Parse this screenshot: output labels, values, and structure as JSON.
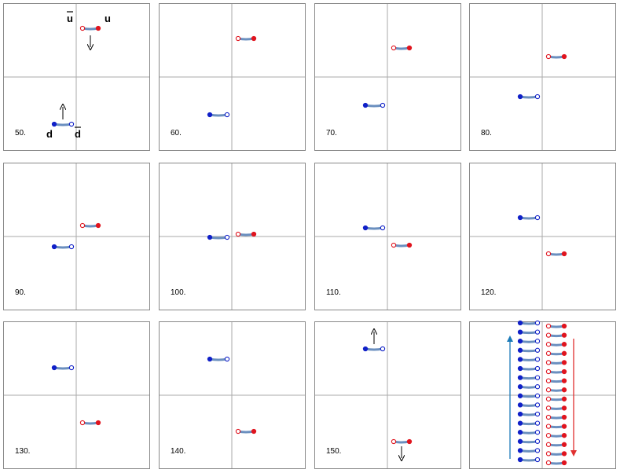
{
  "colors": {
    "blue": "#1020c8",
    "red": "#e0141e",
    "string": "#6a8fbf",
    "axis": "#aaaaaa",
    "border": "#888888",
    "arrow_blue": "#1a7ab8",
    "arrow_red": "#e03030"
  },
  "labels": {
    "u": "u",
    "ubar": "u",
    "d": "d",
    "dbar": "d"
  },
  "frames": [
    {
      "label": "50.",
      "blue_y": -60,
      "red_y": 62,
      "red_dot_left": "hollow",
      "blue_dot_right": "hollow",
      "arrows": true
    },
    {
      "label": "60.",
      "blue_y": -48,
      "red_y": 49,
      "arrows": false
    },
    {
      "label": "70.",
      "blue_y": -36,
      "red_y": 37,
      "arrows": false
    },
    {
      "label": "80.",
      "blue_y": -25,
      "red_y": 26,
      "arrows": false
    },
    {
      "label": "90.",
      "blue_y": -13,
      "red_y": 14,
      "arrows": false
    },
    {
      "label": "100.",
      "blue_y": -1,
      "red_y": 3,
      "arrows": false
    },
    {
      "label": "110.",
      "blue_y": 11,
      "red_y": -11,
      "arrows": false
    },
    {
      "label": "120.",
      "blue_y": 24,
      "red_y": -22,
      "arrows": false
    },
    {
      "label": "130.",
      "blue_y": 35,
      "red_y": -35,
      "arrows": false
    },
    {
      "label": "140.",
      "blue_y": 46,
      "red_y": -46,
      "arrows": false
    },
    {
      "label": "150.",
      "blue_y": 59,
      "red_y": -59,
      "arrows": true
    }
  ],
  "stack": {
    "rows": 16
  }
}
